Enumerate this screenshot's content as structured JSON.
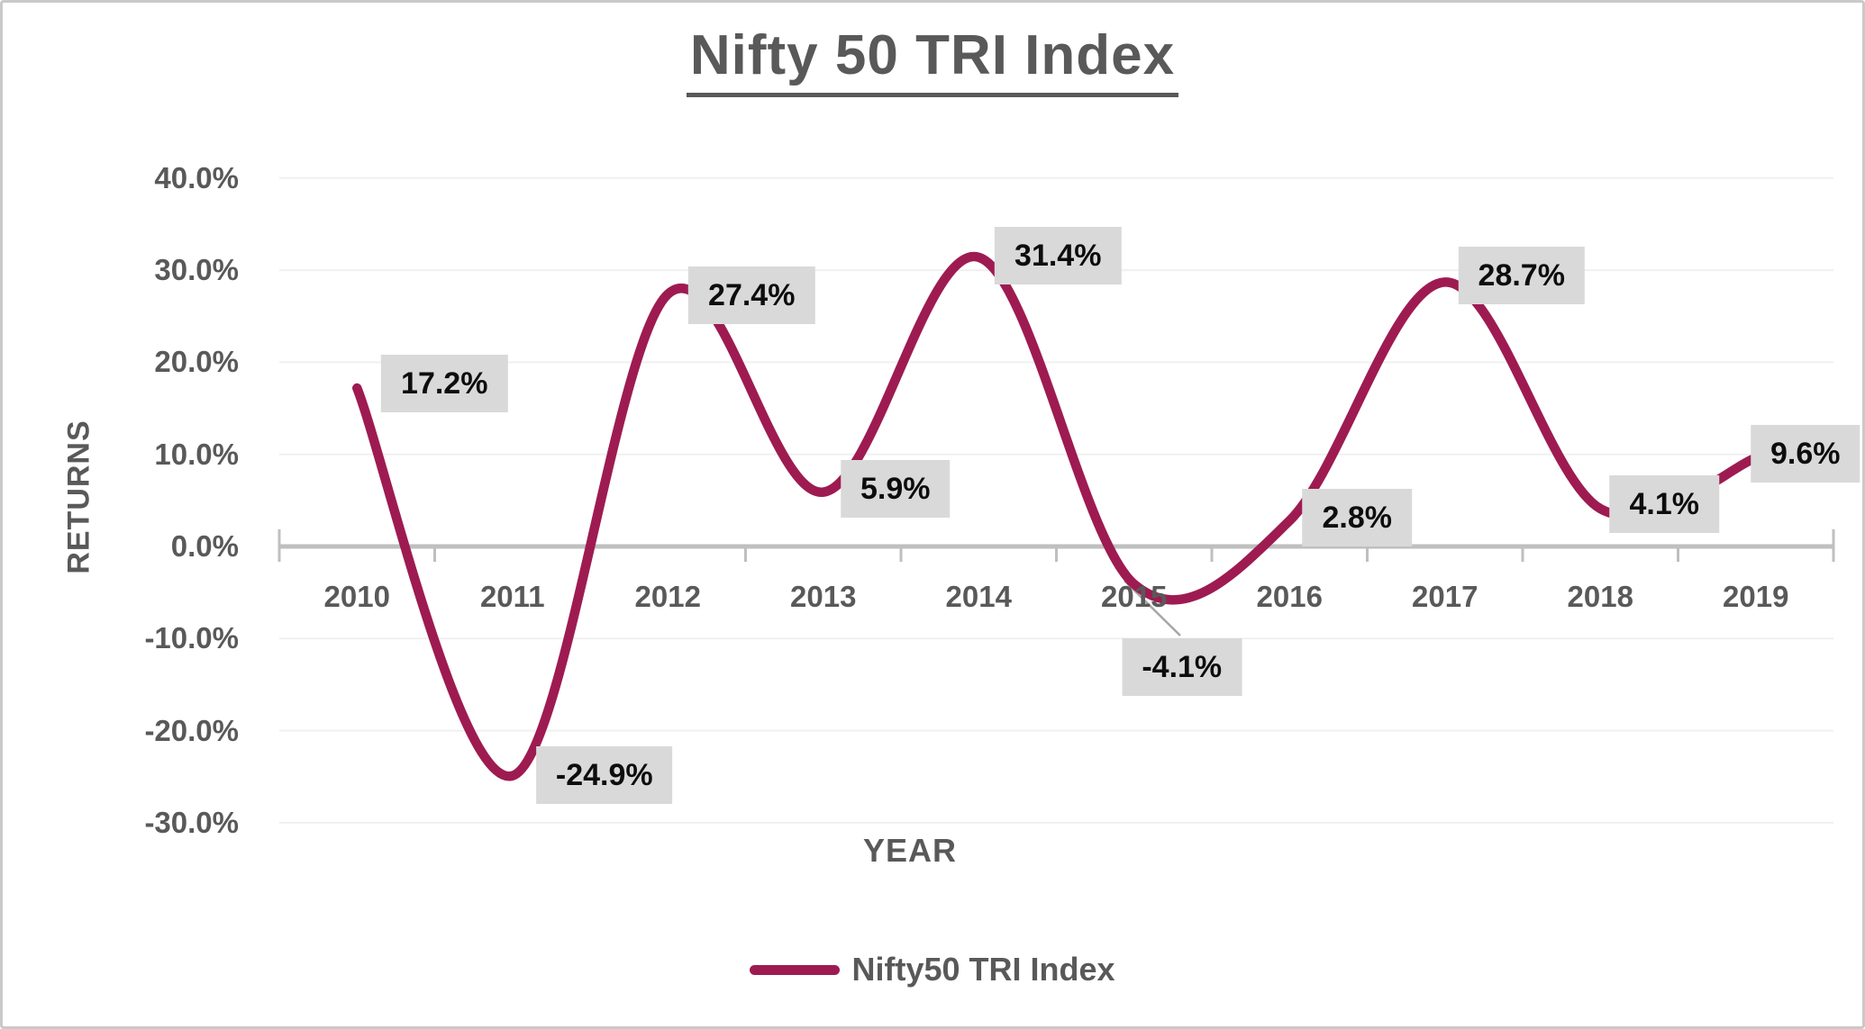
{
  "title": "Nifty 50 TRI Index",
  "colors": {
    "line": "#9E1B51",
    "label_bg": "#D9D9D9",
    "label_text": "#0D0D0D",
    "axis": "#BFBFBF",
    "gridline": "#F0F0F0",
    "text": "#595959",
    "leader": "#A6A6A6",
    "frame": "#C9C9C9"
  },
  "chart_data": {
    "type": "line",
    "smooth": true,
    "title": "Nifty 50 TRI Index",
    "xlabel": "YEAR",
    "ylabel": "RETURNS",
    "categories": [
      "2010",
      "2011",
      "2012",
      "2013",
      "2014",
      "2015",
      "2016",
      "2017",
      "2018",
      "2019"
    ],
    "series": [
      {
        "name": "Nifty50 TRI Index",
        "values": [
          17.2,
          -24.9,
          27.4,
          5.9,
          31.4,
          -4.1,
          2.8,
          28.7,
          4.1,
          9.6
        ]
      }
    ],
    "data_labels": [
      "17.2%",
      "-24.9%",
      "27.4%",
      "5.9%",
      "31.4%",
      "-4.1%",
      "2.8%",
      "28.7%",
      "4.1%",
      "9.6%"
    ],
    "y_ticks": [
      "40.0%",
      "30.0%",
      "20.0%",
      "10.0%",
      "0.0%",
      "-10.0%",
      "-20.0%",
      "-30.0%"
    ],
    "y_tick_values": [
      40,
      30,
      20,
      10,
      0,
      -10,
      -20,
      -30
    ],
    "ylim": [
      -30,
      40
    ],
    "grid": true,
    "legend_position": "bottom"
  },
  "legend": {
    "label": "Nifty50 TRI Index"
  }
}
